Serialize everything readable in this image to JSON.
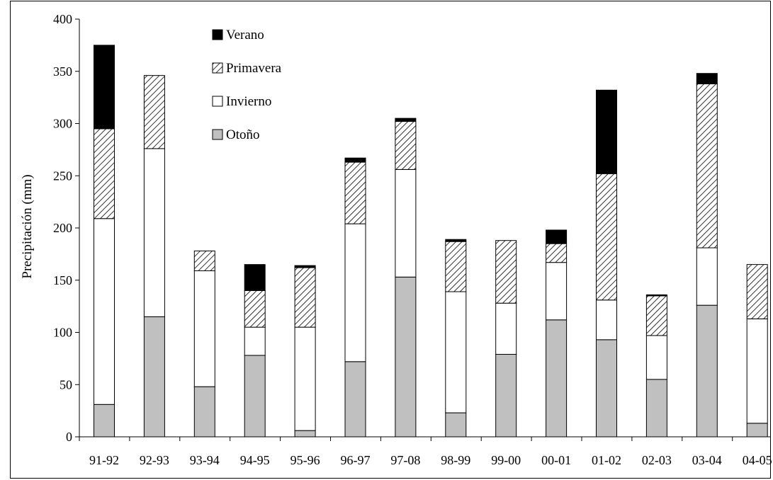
{
  "chart_data": {
    "type": "bar",
    "stacked": true,
    "title": "",
    "xlabel": "",
    "ylabel": "Precipitación (mm)",
    "ylim": [
      0,
      400
    ],
    "yticks": [
      0,
      50,
      100,
      150,
      200,
      250,
      300,
      350,
      400
    ],
    "grid": false,
    "legend_position": "top-left",
    "categories": [
      "91-92",
      "92-93",
      "93-94",
      "94-95",
      "95-96",
      "96-97",
      "97-08",
      "98-99",
      "99-00",
      "00-01",
      "01-02",
      "02-03",
      "03-04",
      "04-05"
    ],
    "series": [
      {
        "name": "Otoño",
        "color": "#c0c0c0",
        "pattern": "solid",
        "values": [
          31,
          115,
          48,
          78,
          6,
          72,
          153,
          23,
          79,
          112,
          93,
          55,
          126,
          13
        ]
      },
      {
        "name": "Invierno",
        "color": "#ffffff",
        "pattern": "solid",
        "values": [
          178,
          161,
          111,
          27,
          99,
          132,
          103,
          116,
          49,
          55,
          38,
          42,
          55,
          100
        ]
      },
      {
        "name": "Primavera",
        "color": "#ffffff",
        "pattern": "hatch",
        "values": [
          86,
          70,
          19,
          35,
          57,
          59,
          46,
          48,
          60,
          18,
          121,
          38,
          157,
          52
        ]
      },
      {
        "name": "Verano",
        "color": "#000000",
        "pattern": "solid",
        "values": [
          80,
          0,
          0,
          25,
          2,
          4,
          3,
          2,
          0,
          13,
          80,
          1,
          10,
          0
        ]
      }
    ],
    "legend_order": [
      "Verano",
      "Primavera",
      "Invierno",
      "Otoño"
    ]
  }
}
